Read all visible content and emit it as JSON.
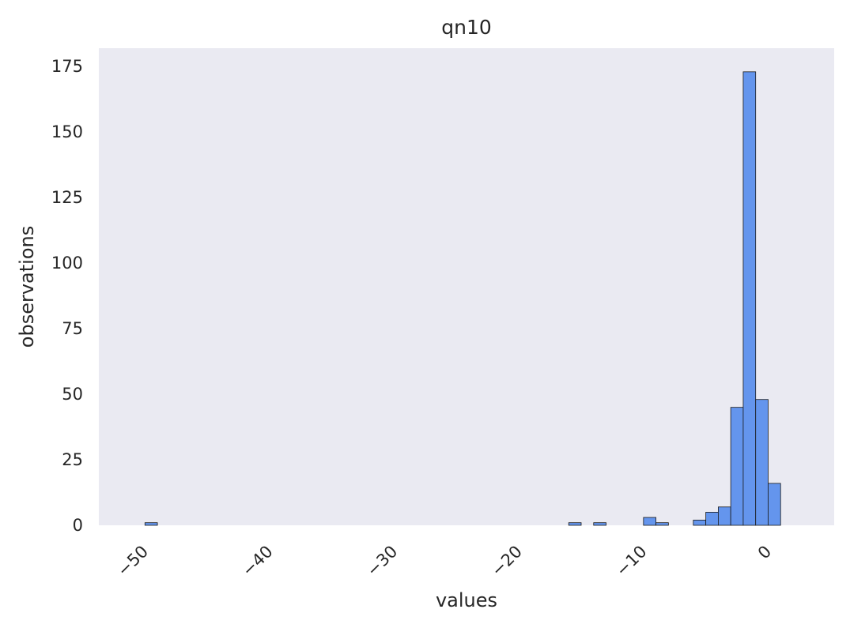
{
  "chart_data": {
    "type": "bar",
    "title": "qn10",
    "xlabel": "values",
    "ylabel": "observations",
    "xlim": [
      -53.2,
      5.8
    ],
    "ylim": [
      0,
      182
    ],
    "grid": false,
    "bin_width": 1.0,
    "x_ticks": [
      -50,
      -40,
      -30,
      -20,
      -10,
      0
    ],
    "x_tick_labels": [
      "−50",
      "−40",
      "−30",
      "−20",
      "−10",
      "0"
    ],
    "y_ticks": [
      0,
      25,
      50,
      75,
      100,
      125,
      150,
      175
    ],
    "y_tick_labels": [
      "0",
      "25",
      "50",
      "75",
      "100",
      "125",
      "150",
      "175"
    ],
    "bins": [
      {
        "x0": -49.5,
        "x1": -48.5,
        "count": 1
      },
      {
        "x0": -15.5,
        "x1": -14.5,
        "count": 1
      },
      {
        "x0": -13.5,
        "x1": -12.5,
        "count": 1
      },
      {
        "x0": -9.5,
        "x1": -8.5,
        "count": 3
      },
      {
        "x0": -8.5,
        "x1": -7.5,
        "count": 1
      },
      {
        "x0": -5.5,
        "x1": -4.5,
        "count": 2
      },
      {
        "x0": -4.5,
        "x1": -3.5,
        "count": 5
      },
      {
        "x0": -3.5,
        "x1": -2.5,
        "count": 7
      },
      {
        "x0": -2.5,
        "x1": -1.5,
        "count": 45
      },
      {
        "x0": -1.5,
        "x1": -0.5,
        "count": 173
      },
      {
        "x0": -0.5,
        "x1": 0.5,
        "count": 48
      },
      {
        "x0": 0.5,
        "x1": 1.5,
        "count": 16
      }
    ],
    "colors": {
      "bar_fill": "#6495ed",
      "bar_edge": "#1a1a1a",
      "plot_background": "#eaeaf2"
    }
  }
}
